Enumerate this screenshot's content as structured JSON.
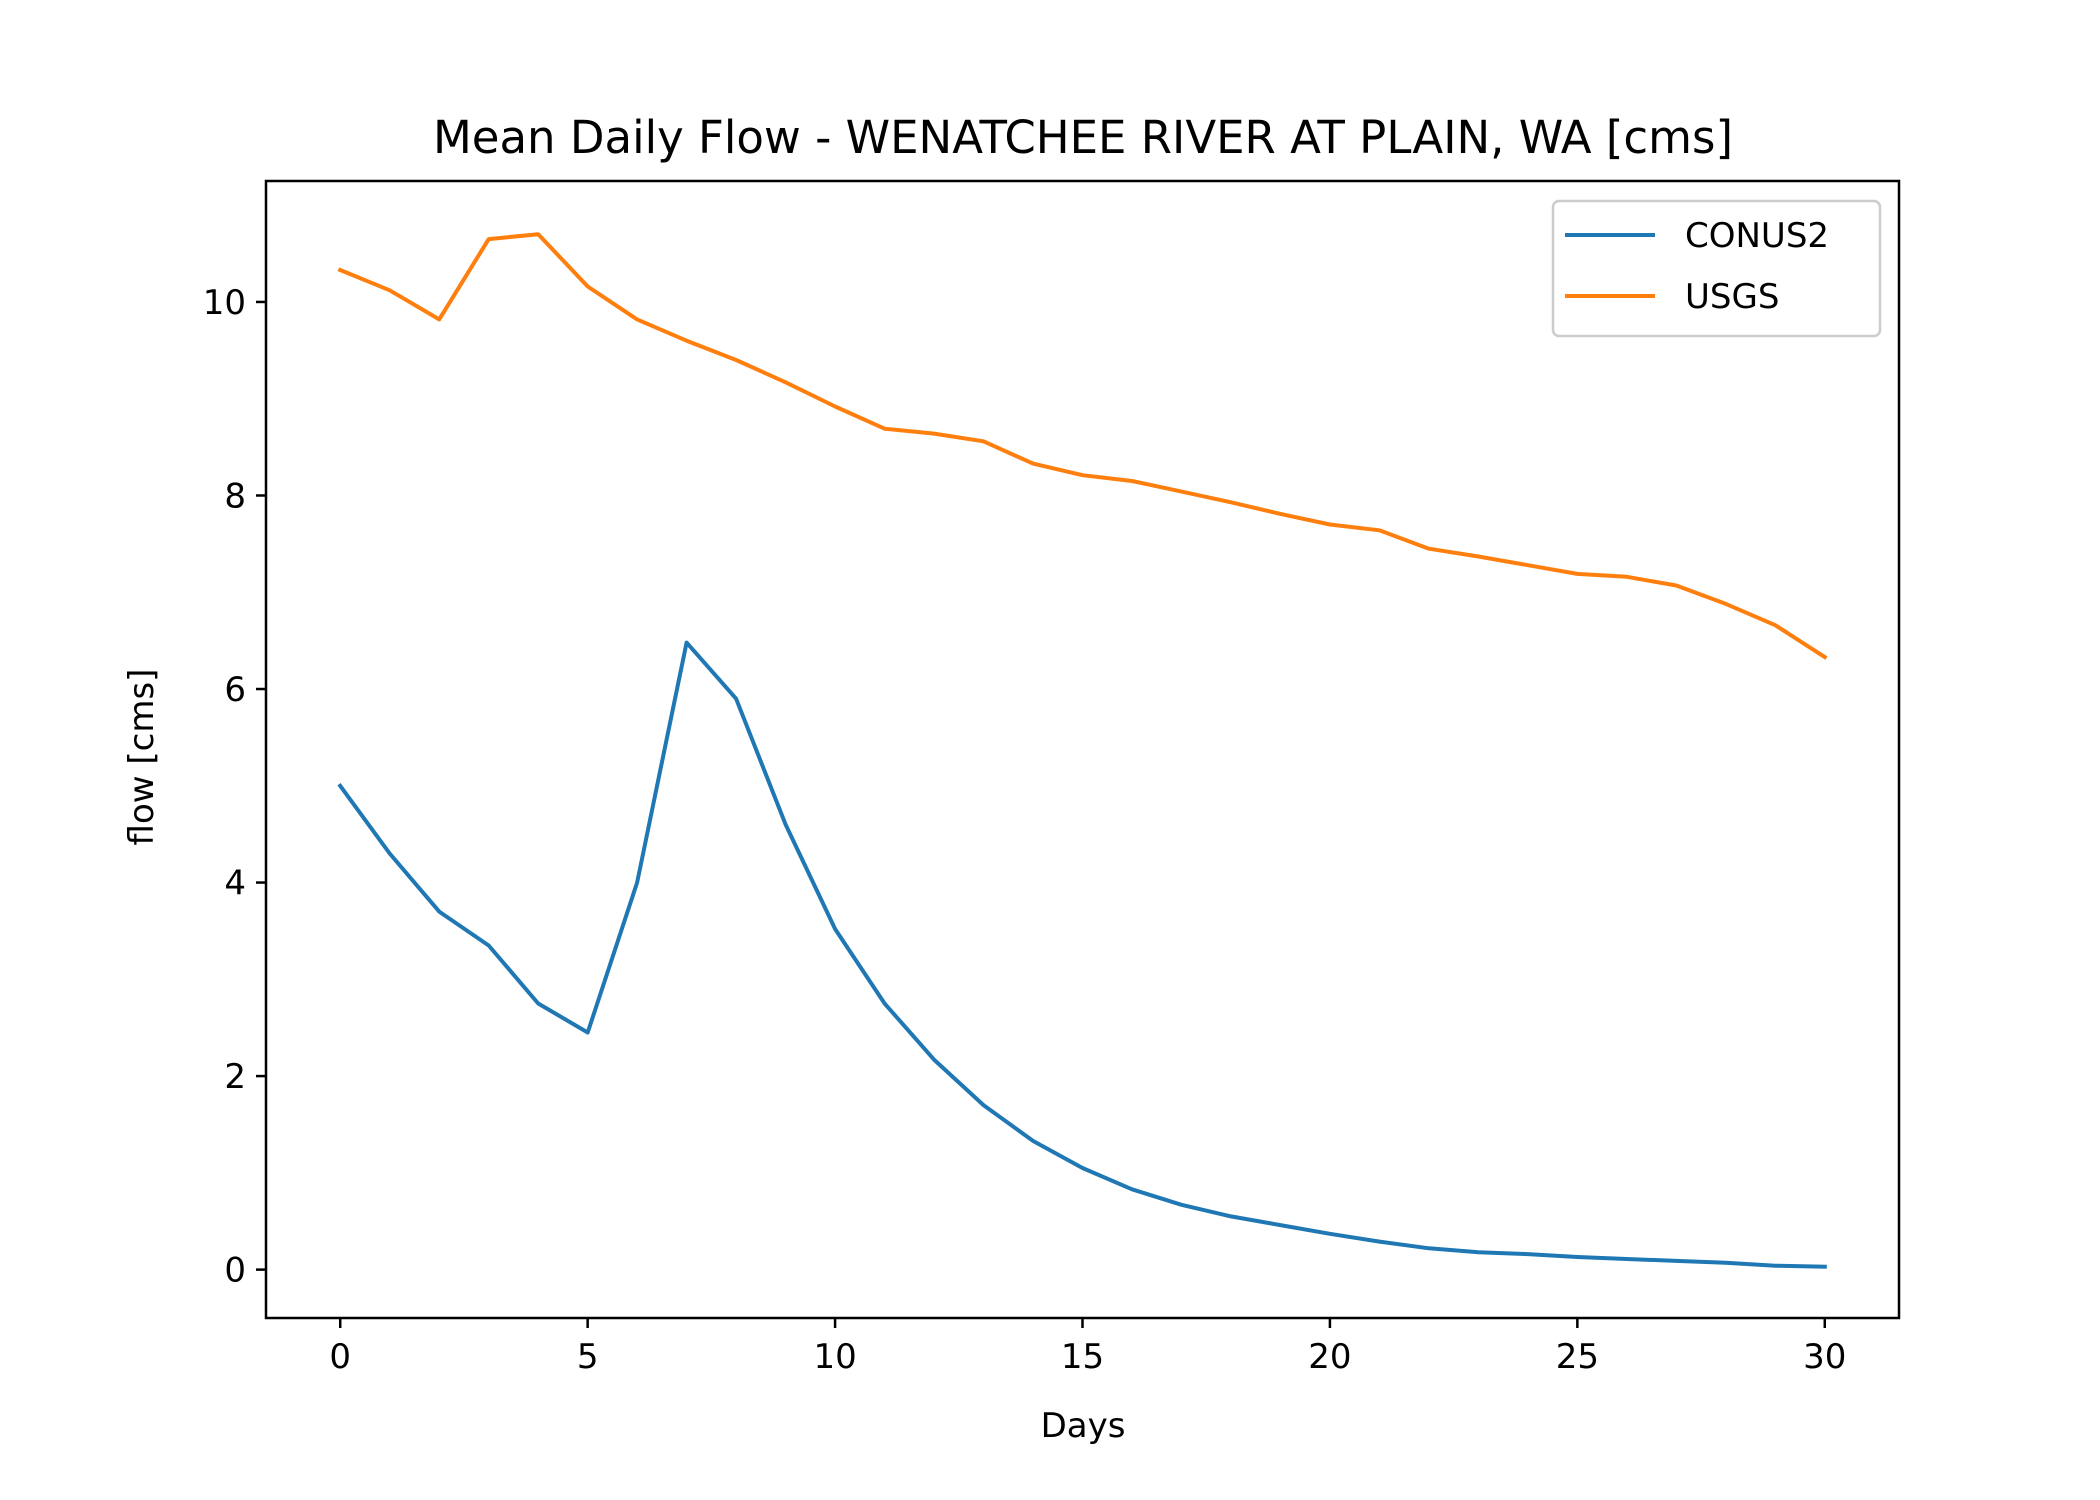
{
  "chart_data": {
    "type": "line",
    "title": "Mean Daily Flow - WENATCHEE RIVER AT PLAIN, WA [cms]",
    "xlabel": "Days",
    "ylabel": "flow [cms]",
    "xlim": [
      -1.5,
      31.5
    ],
    "ylim": [
      -0.5,
      11.25
    ],
    "xticks": [
      0,
      5,
      10,
      15,
      20,
      25,
      30
    ],
    "yticks": [
      0,
      2,
      4,
      6,
      8,
      10
    ],
    "grid": false,
    "legend_position": "top-right",
    "x": [
      0,
      1,
      2,
      3,
      4,
      5,
      6,
      7,
      8,
      9,
      10,
      11,
      12,
      13,
      14,
      15,
      16,
      17,
      18,
      19,
      20,
      21,
      22,
      23,
      24,
      25,
      26,
      27,
      28,
      29,
      30
    ],
    "series": [
      {
        "name": "CONUS2",
        "color": "#1f77b4",
        "values": [
          5.0,
          4.3,
          3.7,
          3.35,
          2.75,
          2.45,
          4.0,
          6.48,
          5.9,
          4.6,
          3.52,
          2.75,
          2.17,
          1.7,
          1.33,
          1.05,
          0.83,
          0.67,
          0.55,
          0.46,
          0.37,
          0.29,
          0.22,
          0.18,
          0.16,
          0.13,
          0.11,
          0.09,
          0.07,
          0.04,
          0.03
        ]
      },
      {
        "name": "USGS",
        "color": "#ff7f0e",
        "values": [
          10.33,
          10.12,
          9.82,
          10.65,
          10.7,
          10.16,
          9.82,
          9.6,
          9.4,
          9.17,
          8.92,
          8.69,
          8.64,
          8.56,
          8.33,
          8.21,
          8.15,
          8.04,
          7.93,
          7.81,
          7.7,
          7.64,
          7.45,
          7.37,
          7.28,
          7.19,
          7.16,
          7.07,
          6.88,
          6.66,
          6.33
        ]
      }
    ]
  }
}
